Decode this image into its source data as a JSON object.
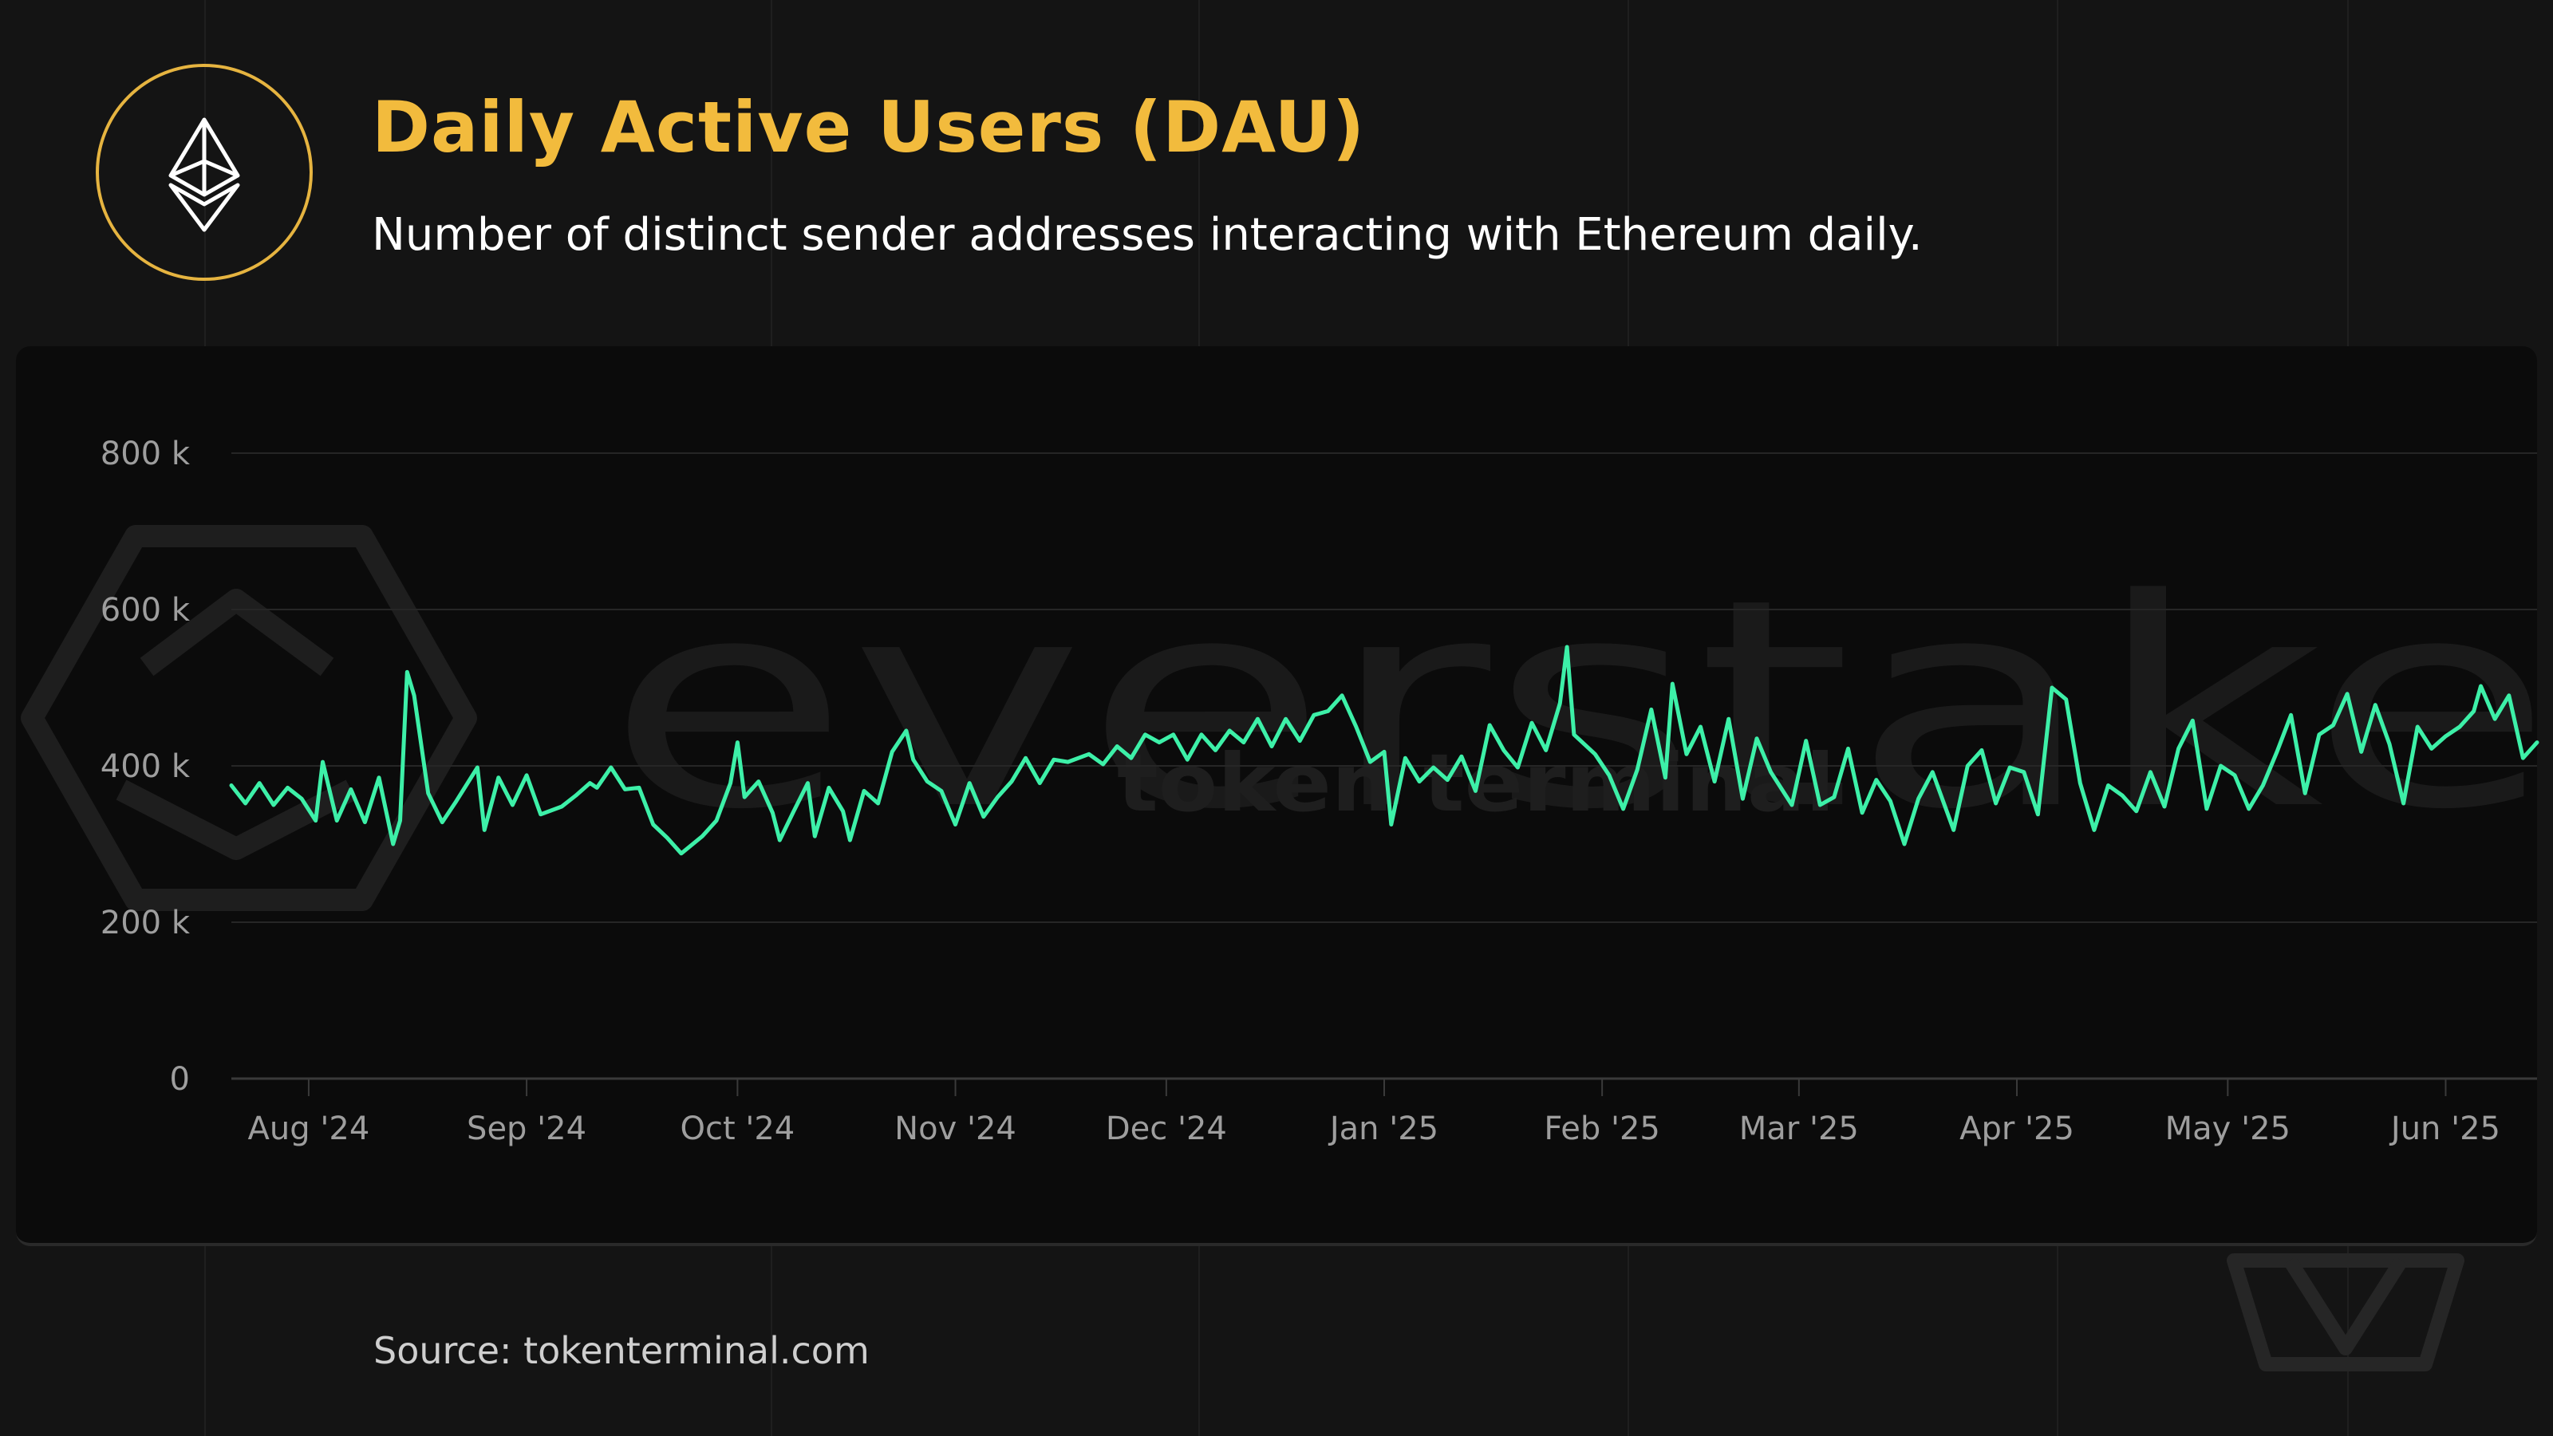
{
  "header": {
    "title": "Daily Active Users (DAU)",
    "subtitle": "Number of distinct sender addresses interacting with Ethereum daily."
  },
  "logo": {
    "icon": "ethereum-icon",
    "ring_color": "#e6b440"
  },
  "watermarks": {
    "brand": "everstake",
    "source_brand": "token terminal"
  },
  "footer": {
    "source": "Source: tokenterminal.com"
  },
  "colors": {
    "accent": "#f2bb3d",
    "line": "#3df0a8",
    "background": "#141414",
    "panel": "#0b0b0b"
  },
  "chart_data": {
    "type": "line",
    "title": "",
    "xlabel": "",
    "ylabel": "",
    "ylim": [
      0,
      800000
    ],
    "y_ticks": [
      0,
      200000,
      400000,
      600000,
      800000
    ],
    "y_tick_labels": [
      "0",
      "200 k",
      "400 k",
      "600 k",
      "800 k"
    ],
    "grid": true,
    "legend": "none",
    "x_range": [
      "2024-07-21",
      "2025-06-14"
    ],
    "x_ticks": [
      "2024-08-01",
      "2024-09-01",
      "2024-10-01",
      "2024-11-01",
      "2024-12-01",
      "2025-01-01",
      "2025-02-01",
      "2025-03-01",
      "2025-04-01",
      "2025-05-01",
      "2025-06-01"
    ],
    "x_tick_labels": [
      "Aug '24",
      "Sep '24",
      "Oct '24",
      "Nov '24",
      "Dec '24",
      "Jan '25",
      "Feb '25",
      "Mar '25",
      "Apr '25",
      "May '25",
      "Jun '25"
    ],
    "series": [
      {
        "color": "#3df0a8",
        "points": [
          [
            "2024-07-21",
            375000
          ],
          [
            "2024-07-23",
            352000
          ],
          [
            "2024-07-25",
            378000
          ],
          [
            "2024-07-27",
            350000
          ],
          [
            "2024-07-29",
            372000
          ],
          [
            "2024-07-31",
            358000
          ],
          [
            "2024-08-02",
            330000
          ],
          [
            "2024-08-03",
            405000
          ],
          [
            "2024-08-05",
            330000
          ],
          [
            "2024-08-07",
            370000
          ],
          [
            "2024-08-09",
            328000
          ],
          [
            "2024-08-11",
            385000
          ],
          [
            "2024-08-13",
            300000
          ],
          [
            "2024-08-14",
            330000
          ],
          [
            "2024-08-15",
            520000
          ],
          [
            "2024-08-16",
            490000
          ],
          [
            "2024-08-18",
            365000
          ],
          [
            "2024-08-20",
            328000
          ],
          [
            "2024-08-22",
            355000
          ],
          [
            "2024-08-25",
            398000
          ],
          [
            "2024-08-26",
            318000
          ],
          [
            "2024-08-28",
            385000
          ],
          [
            "2024-08-30",
            350000
          ],
          [
            "2024-09-01",
            388000
          ],
          [
            "2024-09-03",
            338000
          ],
          [
            "2024-09-06",
            348000
          ],
          [
            "2024-09-08",
            362000
          ],
          [
            "2024-09-10",
            378000
          ],
          [
            "2024-09-11",
            372000
          ],
          [
            "2024-09-13",
            398000
          ],
          [
            "2024-09-15",
            370000
          ],
          [
            "2024-09-17",
            372000
          ],
          [
            "2024-09-19",
            325000
          ],
          [
            "2024-09-21",
            308000
          ],
          [
            "2024-09-23",
            288000
          ],
          [
            "2024-09-26",
            310000
          ],
          [
            "2024-09-28",
            330000
          ],
          [
            "2024-09-30",
            378000
          ],
          [
            "2024-10-01",
            430000
          ],
          [
            "2024-10-02",
            360000
          ],
          [
            "2024-10-04",
            380000
          ],
          [
            "2024-10-06",
            340000
          ],
          [
            "2024-10-07",
            305000
          ],
          [
            "2024-10-09",
            342000
          ],
          [
            "2024-10-11",
            378000
          ],
          [
            "2024-10-12",
            310000
          ],
          [
            "2024-10-14",
            372000
          ],
          [
            "2024-10-16",
            342000
          ],
          [
            "2024-10-17",
            305000
          ],
          [
            "2024-10-19",
            368000
          ],
          [
            "2024-10-21",
            352000
          ],
          [
            "2024-10-23",
            418000
          ],
          [
            "2024-10-25",
            445000
          ],
          [
            "2024-10-26",
            408000
          ],
          [
            "2024-10-28",
            380000
          ],
          [
            "2024-10-30",
            368000
          ],
          [
            "2024-11-01",
            325000
          ],
          [
            "2024-11-03",
            378000
          ],
          [
            "2024-11-05",
            335000
          ],
          [
            "2024-11-07",
            360000
          ],
          [
            "2024-11-09",
            380000
          ],
          [
            "2024-11-11",
            410000
          ],
          [
            "2024-11-13",
            378000
          ],
          [
            "2024-11-15",
            408000
          ],
          [
            "2024-11-17",
            405000
          ],
          [
            "2024-11-20",
            415000
          ],
          [
            "2024-11-22",
            402000
          ],
          [
            "2024-11-24",
            425000
          ],
          [
            "2024-11-26",
            410000
          ],
          [
            "2024-11-28",
            440000
          ],
          [
            "2024-11-30",
            430000
          ],
          [
            "2024-12-02",
            440000
          ],
          [
            "2024-12-04",
            408000
          ],
          [
            "2024-12-06",
            440000
          ],
          [
            "2024-12-08",
            420000
          ],
          [
            "2024-12-10",
            445000
          ],
          [
            "2024-12-12",
            430000
          ],
          [
            "2024-12-14",
            460000
          ],
          [
            "2024-12-16",
            425000
          ],
          [
            "2024-12-18",
            460000
          ],
          [
            "2024-12-20",
            432000
          ],
          [
            "2024-12-22",
            465000
          ],
          [
            "2024-12-24",
            470000
          ],
          [
            "2024-12-26",
            490000
          ],
          [
            "2024-12-28",
            450000
          ],
          [
            "2024-12-30",
            405000
          ],
          [
            "2025-01-01",
            418000
          ],
          [
            "2025-01-02",
            325000
          ],
          [
            "2025-01-04",
            410000
          ],
          [
            "2025-01-06",
            380000
          ],
          [
            "2025-01-08",
            398000
          ],
          [
            "2025-01-10",
            382000
          ],
          [
            "2025-01-12",
            412000
          ],
          [
            "2025-01-14",
            368000
          ],
          [
            "2025-01-16",
            452000
          ],
          [
            "2025-01-18",
            420000
          ],
          [
            "2025-01-20",
            398000
          ],
          [
            "2025-01-22",
            455000
          ],
          [
            "2025-01-24",
            420000
          ],
          [
            "2025-01-26",
            480000
          ],
          [
            "2025-01-27",
            552000
          ],
          [
            "2025-01-28",
            440000
          ],
          [
            "2025-01-31",
            415000
          ],
          [
            "2025-02-02",
            388000
          ],
          [
            "2025-02-04",
            345000
          ],
          [
            "2025-02-06",
            395000
          ],
          [
            "2025-02-08",
            472000
          ],
          [
            "2025-02-10",
            385000
          ],
          [
            "2025-02-11",
            505000
          ],
          [
            "2025-02-13",
            415000
          ],
          [
            "2025-02-15",
            450000
          ],
          [
            "2025-02-17",
            380000
          ],
          [
            "2025-02-19",
            460000
          ],
          [
            "2025-02-21",
            358000
          ],
          [
            "2025-02-23",
            435000
          ],
          [
            "2025-02-25",
            392000
          ],
          [
            "2025-02-28",
            350000
          ],
          [
            "2025-03-02",
            432000
          ],
          [
            "2025-03-04",
            350000
          ],
          [
            "2025-03-06",
            360000
          ],
          [
            "2025-03-08",
            422000
          ],
          [
            "2025-03-10",
            340000
          ],
          [
            "2025-03-12",
            382000
          ],
          [
            "2025-03-14",
            355000
          ],
          [
            "2025-03-16",
            300000
          ],
          [
            "2025-03-18",
            358000
          ],
          [
            "2025-03-20",
            392000
          ],
          [
            "2025-03-23",
            318000
          ],
          [
            "2025-03-25",
            400000
          ],
          [
            "2025-03-27",
            420000
          ],
          [
            "2025-03-29",
            352000
          ],
          [
            "2025-03-31",
            398000
          ],
          [
            "2025-04-02",
            392000
          ],
          [
            "2025-04-04",
            338000
          ],
          [
            "2025-04-06",
            500000
          ],
          [
            "2025-04-08",
            485000
          ],
          [
            "2025-04-10",
            378000
          ],
          [
            "2025-04-12",
            318000
          ],
          [
            "2025-04-14",
            375000
          ],
          [
            "2025-04-16",
            362000
          ],
          [
            "2025-04-18",
            342000
          ],
          [
            "2025-04-20",
            392000
          ],
          [
            "2025-04-22",
            348000
          ],
          [
            "2025-04-24",
            422000
          ],
          [
            "2025-04-26",
            458000
          ],
          [
            "2025-04-28",
            345000
          ],
          [
            "2025-04-30",
            400000
          ],
          [
            "2025-05-02",
            388000
          ],
          [
            "2025-05-04",
            345000
          ],
          [
            "2025-05-06",
            375000
          ],
          [
            "2025-05-08",
            418000
          ],
          [
            "2025-05-10",
            465000
          ],
          [
            "2025-05-12",
            365000
          ],
          [
            "2025-05-14",
            440000
          ],
          [
            "2025-05-16",
            452000
          ],
          [
            "2025-05-18",
            492000
          ],
          [
            "2025-05-20",
            418000
          ],
          [
            "2025-05-22",
            478000
          ],
          [
            "2025-05-24",
            428000
          ],
          [
            "2025-05-26",
            352000
          ],
          [
            "2025-05-28",
            450000
          ],
          [
            "2025-05-30",
            422000
          ],
          [
            "2025-06-01",
            438000
          ],
          [
            "2025-06-03",
            450000
          ],
          [
            "2025-06-05",
            470000
          ],
          [
            "2025-06-06",
            502000
          ],
          [
            "2025-06-08",
            460000
          ],
          [
            "2025-06-10",
            490000
          ],
          [
            "2025-06-12",
            410000
          ],
          [
            "2025-06-14",
            430000
          ]
        ]
      }
    ]
  }
}
